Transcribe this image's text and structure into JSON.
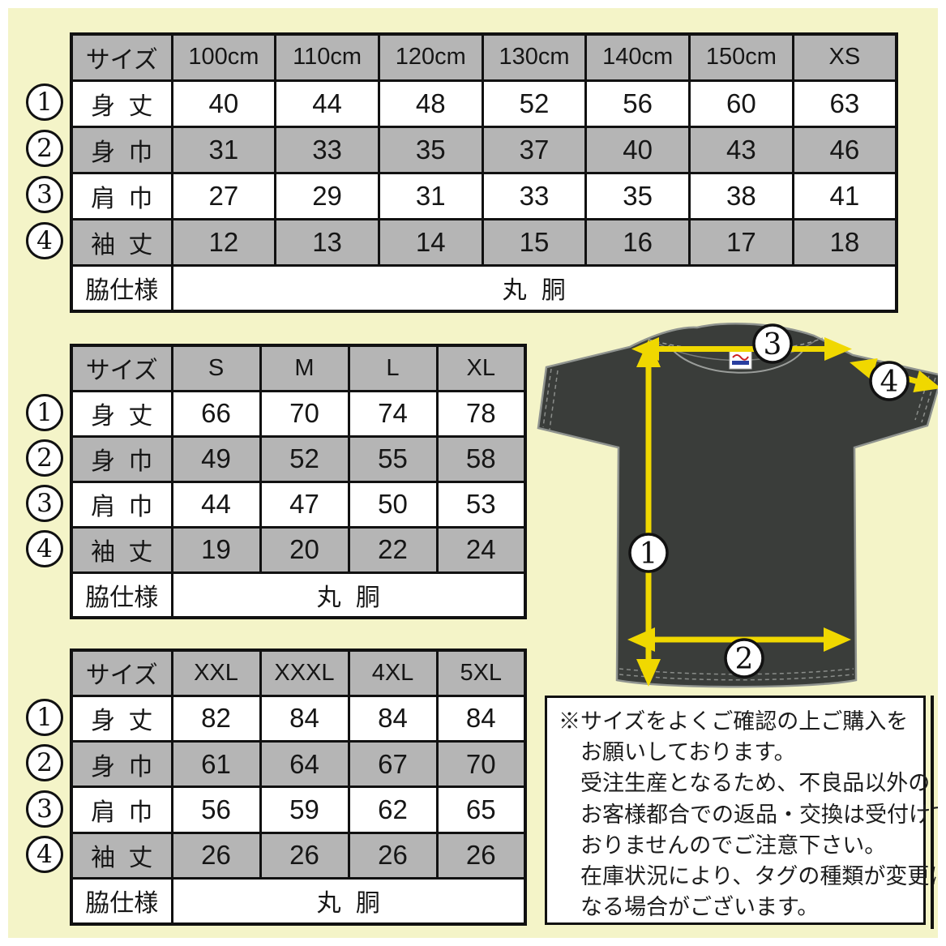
{
  "colors": {
    "background": "#f4f4c8",
    "cell_gray": "#b5b5b5",
    "border_black": "#111111",
    "arrow_yellow": "#f0d800",
    "shirt_body": "#3a3d3a",
    "shirt_outline": "#8f938f",
    "tag_red": "#cc2020",
    "tag_blue": "#2a3fa0"
  },
  "markers": [
    "1",
    "2",
    "3",
    "4"
  ],
  "tables": [
    {
      "name": "kids-sizes",
      "header": [
        "サイズ",
        "100cm",
        "110cm",
        "120cm",
        "130cm",
        "140cm",
        "150cm",
        "XS"
      ],
      "rows": [
        {
          "label": "身 丈",
          "values": [
            "40",
            "44",
            "48",
            "52",
            "56",
            "60",
            "63"
          ]
        },
        {
          "label": "身 巾",
          "values": [
            "31",
            "33",
            "35",
            "37",
            "40",
            "43",
            "46"
          ]
        },
        {
          "label": "肩 巾",
          "values": [
            "27",
            "29",
            "31",
            "33",
            "35",
            "38",
            "41"
          ]
        },
        {
          "label": "袖 丈",
          "values": [
            "12",
            "13",
            "14",
            "15",
            "16",
            "17",
            "18"
          ]
        }
      ],
      "footer_label": "脇仕様",
      "footer_value": "丸 胴"
    },
    {
      "name": "adult-sizes",
      "header": [
        "サイズ",
        "S",
        "M",
        "L",
        "XL"
      ],
      "rows": [
        {
          "label": "身 丈",
          "values": [
            "66",
            "70",
            "74",
            "78"
          ]
        },
        {
          "label": "身 巾",
          "values": [
            "49",
            "52",
            "55",
            "58"
          ]
        },
        {
          "label": "肩 巾",
          "values": [
            "44",
            "47",
            "50",
            "53"
          ]
        },
        {
          "label": "袖 丈",
          "values": [
            "19",
            "20",
            "22",
            "24"
          ]
        }
      ],
      "footer_label": "脇仕様",
      "footer_value": "丸 胴"
    },
    {
      "name": "large-sizes",
      "header": [
        "サイズ",
        "XXL",
        "XXXL",
        "4XL",
        "5XL"
      ],
      "rows": [
        {
          "label": "身 丈",
          "values": [
            "82",
            "84",
            "84",
            "84"
          ]
        },
        {
          "label": "身 巾",
          "values": [
            "61",
            "64",
            "67",
            "70"
          ]
        },
        {
          "label": "肩 巾",
          "values": [
            "56",
            "59",
            "62",
            "65"
          ]
        },
        {
          "label": "袖 丈",
          "values": [
            "26",
            "26",
            "26",
            "26"
          ]
        }
      ],
      "footer_label": "脇仕様",
      "footer_value": "丸 胴"
    }
  ],
  "note": {
    "lines": [
      "※サイズをよくご確認の上ご購入を",
      "お願いしております。",
      "受注生産となるため、不良品以外の",
      "お客様都合での返品・交換は受付けて",
      "おりませんのでご注意下さい。",
      "在庫状況により、タグの種類が変更に",
      "なる場合がございます。"
    ]
  }
}
